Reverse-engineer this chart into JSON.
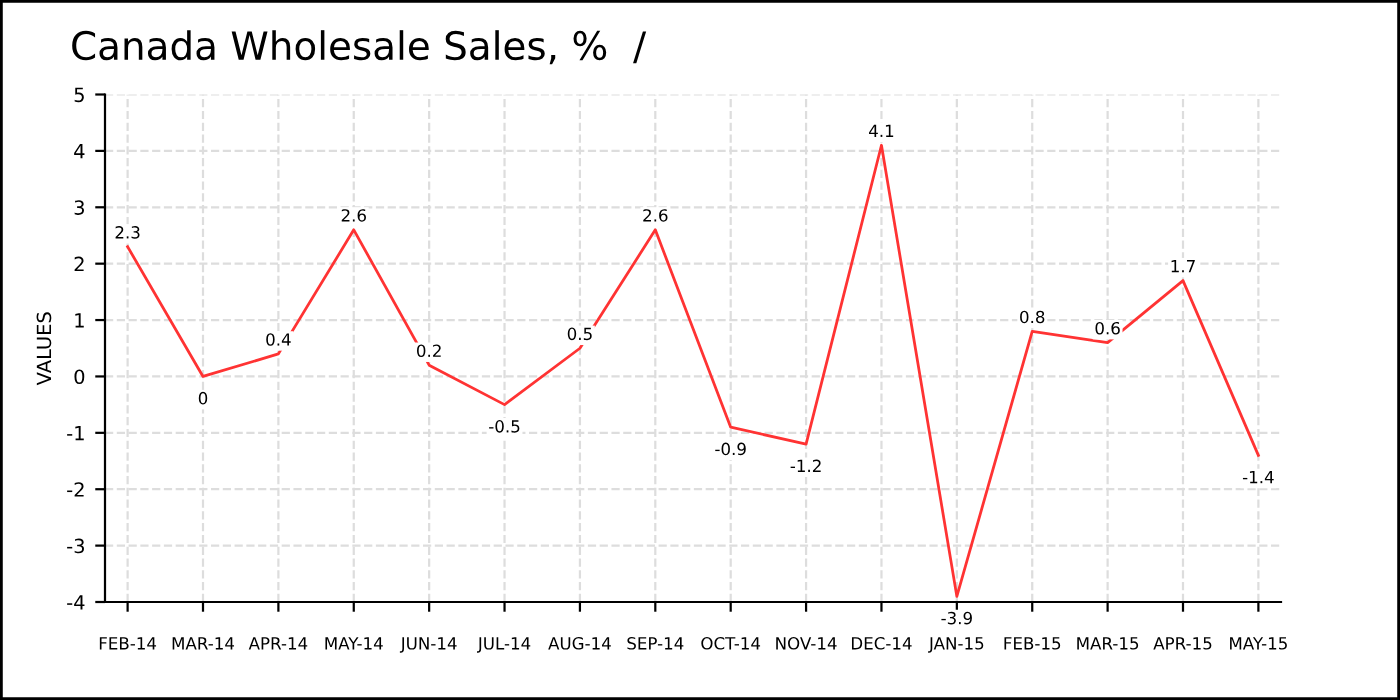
{
  "chart_data": {
    "type": "line",
    "title": "Canada Wholesale Sales, %  /",
    "ylabel": "VALUES",
    "categories": [
      "FEB-14",
      "MAR-14",
      "APR-14",
      "MAY-14",
      "JUN-14",
      "JUL-14",
      "AUG-14",
      "SEP-14",
      "OCT-14",
      "NOV-14",
      "DEC-14",
      "JAN-15",
      "FEB-15",
      "MAR-15",
      "APR-15",
      "MAY-15"
    ],
    "series": [
      {
        "color": "#ff3333",
        "values": [
          2.3,
          0,
          0.4,
          2.6,
          0.2,
          -0.5,
          0.5,
          2.6,
          -0.9,
          -1.2,
          4.1,
          -3.9,
          0.8,
          0.6,
          1.7,
          -1.4
        ]
      }
    ],
    "ylim": [
      -4,
      5
    ],
    "yticks": [
      -4,
      -3,
      -2,
      -1,
      0,
      1,
      2,
      3,
      4,
      5
    ],
    "grid": true,
    "data_labels": true
  }
}
